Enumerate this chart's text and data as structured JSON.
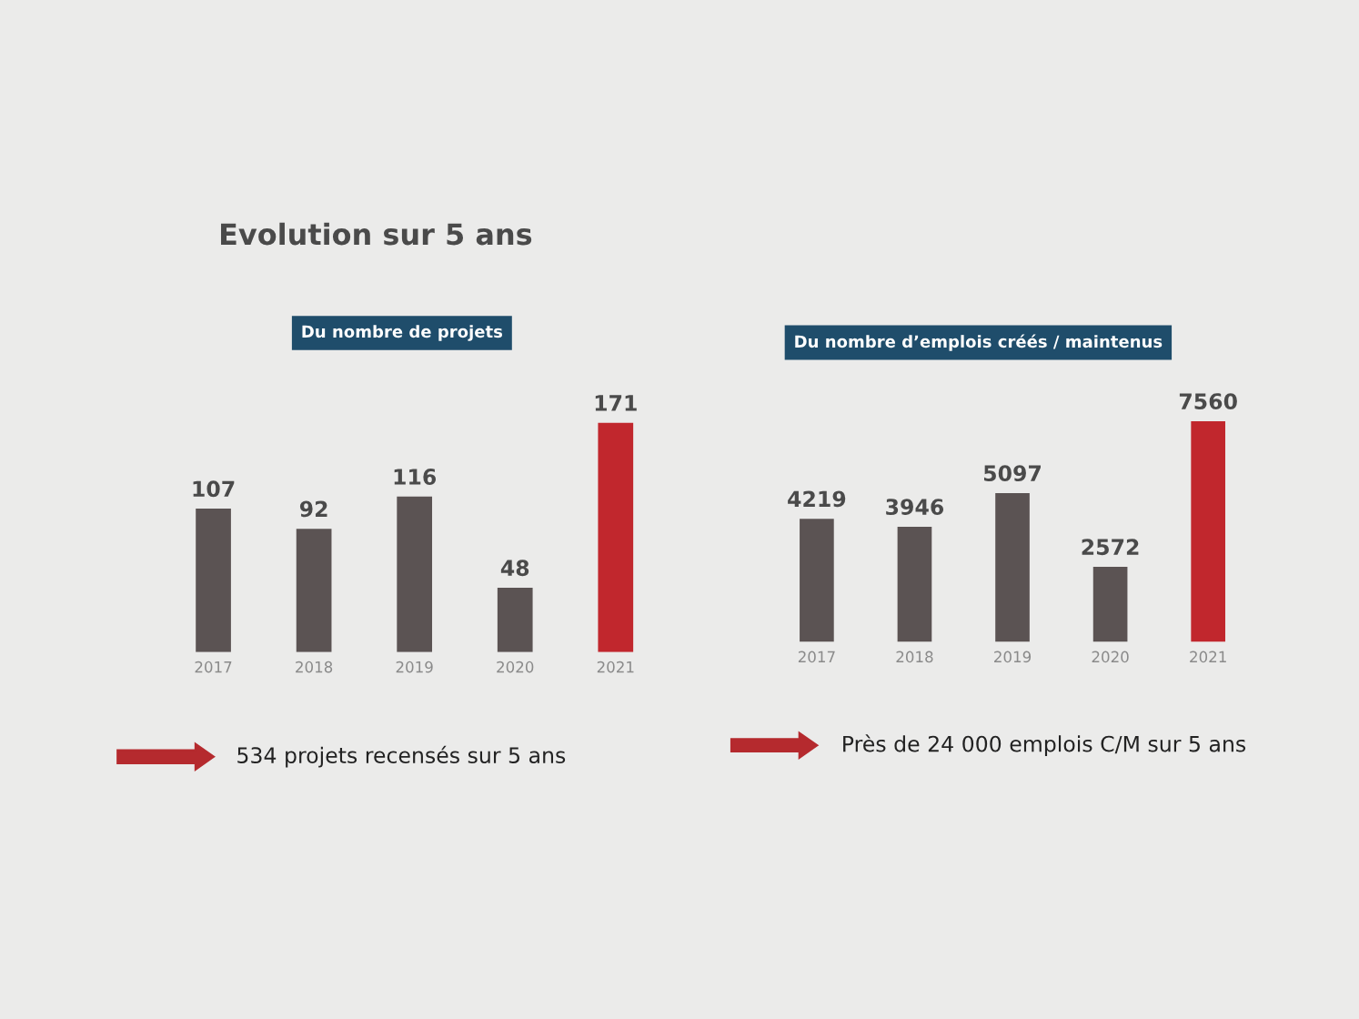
{
  "chart_data": [
    {
      "type": "bar",
      "title": "Evolution sur 5 ans",
      "subtitle": "Du nombre de projets",
      "categories": [
        "2017",
        "2018",
        "2019",
        "2020",
        "2021"
      ],
      "values": [
        107,
        92,
        116,
        48,
        171
      ],
      "colors": [
        "#5b5353",
        "#5b5353",
        "#5b5353",
        "#5b5353",
        "#c1272d"
      ],
      "data_labels": true,
      "tick_labels": "x",
      "annotations": [
        "534 projets recensés sur 5 ans"
      ]
    },
    {
      "type": "bar",
      "subtitle": "Du nombre d’emplois créés / maintenus",
      "categories": [
        "2017",
        "2018",
        "2019",
        "2020",
        "2021"
      ],
      "values": [
        4219,
        3946,
        5097,
        2572,
        7560
      ],
      "colors": [
        "#5b5353",
        "#5b5353",
        "#5b5353",
        "#5b5353",
        "#c1272d"
      ],
      "data_labels": true,
      "tick_labels": "x",
      "annotations": [
        "Près de 24 000 emplois C/M sur 5 ans"
      ]
    }
  ]
}
